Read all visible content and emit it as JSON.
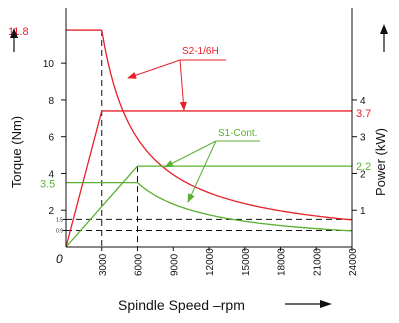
{
  "chart_data": {
    "type": "line",
    "xlabel": "Spindle  Speed  –rpm",
    "ylabel_left": "Torque  (Nm)",
    "ylabel_right": "Power  (kW)",
    "origin_label": "0",
    "x_ticks": [
      3000,
      6000,
      9000,
      12000,
      15000,
      18000,
      21000,
      24000
    ],
    "xlim": [
      0,
      24000
    ],
    "y_left_ticks": [
      "2",
      "4",
      "6",
      "8",
      "10"
    ],
    "y_left_small_ticks": [
      "1.5",
      "0.9"
    ],
    "y_left_small_values": [
      1.5,
      0.9
    ],
    "ylim_left": [
      0,
      13
    ],
    "y_right_ticks": [
      "1",
      "2",
      "3",
      "4"
    ],
    "ylim_right": [
      0,
      6.5
    ],
    "colors": {
      "s2": "#e8202a",
      "s1": "#5ab030",
      "axis": "#111111"
    },
    "series": [
      {
        "name": "S2-1/6H",
        "color": "#e8202a",
        "torque_max_label": "11.8",
        "power_max_label": "3.7",
        "torque": {
          "x": [
            0,
            3000,
            6000,
            9000,
            12000,
            15000,
            18000,
            21000,
            24000
          ],
          "y": [
            11.8,
            11.8,
            5.9,
            3.93,
            2.95,
            2.36,
            1.97,
            1.69,
            1.5
          ]
        },
        "power": {
          "x": [
            0,
            3000,
            24000
          ],
          "y": [
            0,
            3.7,
            3.7
          ]
        }
      },
      {
        "name": "S1-Cont.",
        "color": "#5ab030",
        "torque_max_label": "3.5",
        "power_max_label": "2.2",
        "torque": {
          "x": [
            0,
            6000,
            9000,
            12000,
            15000,
            18000,
            21000,
            24000
          ],
          "y": [
            3.5,
            3.5,
            2.33,
            1.75,
            1.4,
            1.17,
            1.0,
            0.9
          ]
        },
        "power": {
          "x": [
            0,
            6000,
            24000
          ],
          "y": [
            0,
            2.2,
            2.2
          ]
        }
      }
    ]
  }
}
